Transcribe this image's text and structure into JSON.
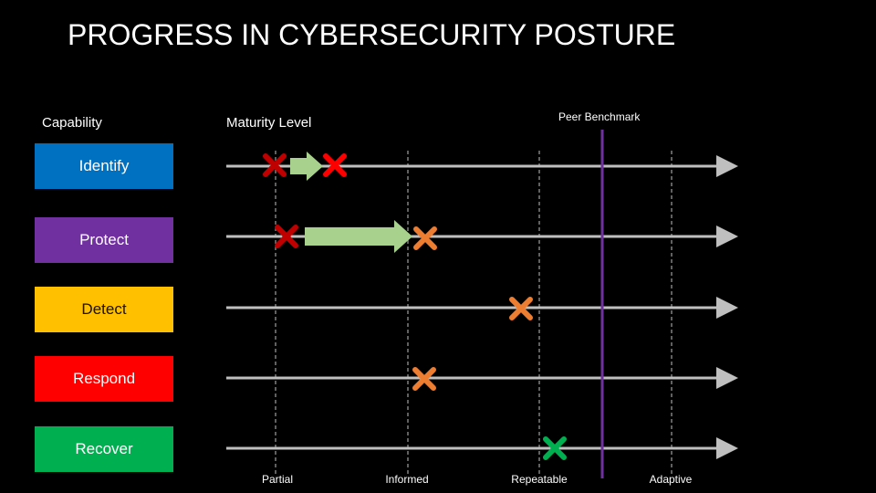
{
  "title": "PROGRESS IN CYBERSECURITY POSTURE",
  "headers": {
    "capability": "Capability",
    "maturity_level": "Maturity Level",
    "peer_benchmark": "Peer Benchmark"
  },
  "capabilities": [
    {
      "label": "Identify",
      "color": "#0070c0",
      "text_color": "#ffffff"
    },
    {
      "label": "Protect",
      "color": "#7030a0",
      "text_color": "#ffffff"
    },
    {
      "label": "Detect",
      "color": "#ffc000",
      "text_color": "#111111"
    },
    {
      "label": "Respond",
      "color": "#ff0000",
      "text_color": "#ffffff"
    },
    {
      "label": "Recover",
      "color": "#00b050",
      "text_color": "#ffffff"
    }
  ],
  "levels": [
    "Partial",
    "Informed",
    "Repeatable",
    "Adaptive"
  ],
  "colors": {
    "track": "#bfbfbf",
    "gridline": "#808080",
    "benchmark": "#7030a0",
    "progress_arrow": "#a9d18e",
    "x_dark_red": "#c00000",
    "x_red": "#ff0000",
    "x_orange": "#ed7d31",
    "x_green": "#00b050"
  },
  "markers": [
    {
      "capability": "Identify",
      "role": "previous",
      "color": "#c00000"
    },
    {
      "capability": "Identify",
      "role": "current",
      "color": "#ff0000"
    },
    {
      "capability": "Protect",
      "role": "previous",
      "color": "#c00000"
    },
    {
      "capability": "Protect",
      "role": "current",
      "color": "#ed7d31"
    },
    {
      "capability": "Detect",
      "role": "current",
      "color": "#ed7d31"
    },
    {
      "capability": "Respond",
      "role": "current",
      "color": "#ed7d31"
    },
    {
      "capability": "Recover",
      "role": "current",
      "color": "#00b050"
    }
  ]
}
